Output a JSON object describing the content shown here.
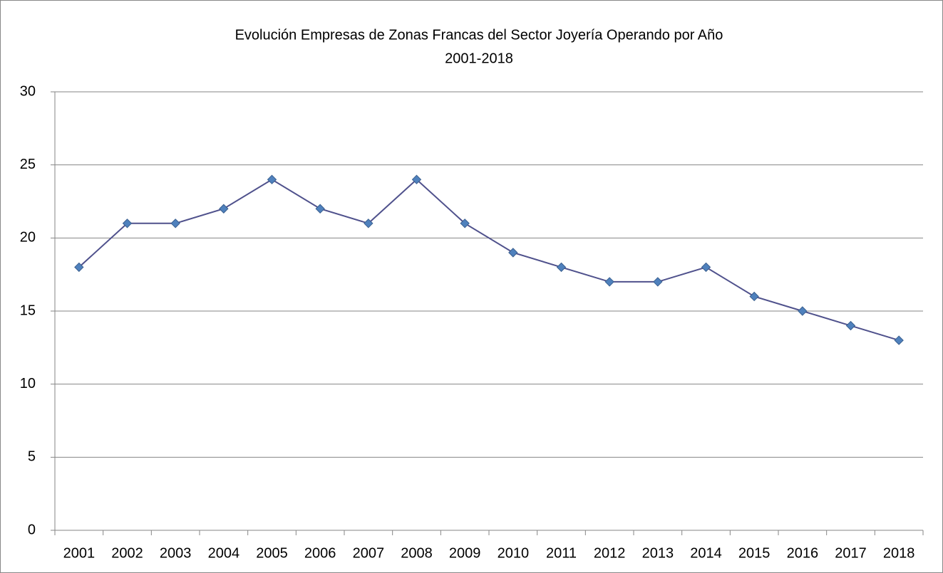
{
  "chart_data": {
    "type": "line",
    "title": "Evolución Empresas de Zonas Francas del Sector Joyería Operando por Año",
    "subtitle": "2001-2018",
    "categories": [
      "2001",
      "2002",
      "2003",
      "2004",
      "2005",
      "2006",
      "2007",
      "2008",
      "2009",
      "2010",
      "2011",
      "2012",
      "2013",
      "2014",
      "2015",
      "2016",
      "2017",
      "2018"
    ],
    "values": [
      18,
      21,
      21,
      22,
      24,
      22,
      21,
      24,
      21,
      19,
      18,
      17,
      17,
      18,
      16,
      15,
      14,
      13
    ],
    "color": "#4f518c",
    "marker_color": "#4f81bd",
    "ylim": [
      0,
      30
    ],
    "yticks": [
      0,
      5,
      10,
      15,
      20,
      25,
      30
    ],
    "grid": true
  }
}
